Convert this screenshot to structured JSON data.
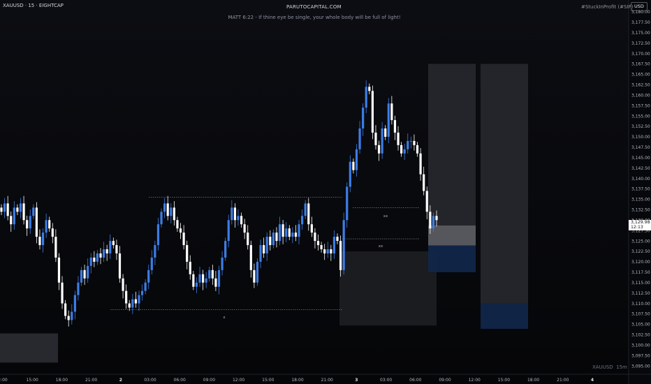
{
  "header": {
    "symbol": "XAUUSD · 15 · EIGHTCAP",
    "site": "PARUTOCAPITAL.COM",
    "tag": "#StuckInProfit (#SIP)",
    "quote": "MATT 6:22 - If thine eye be single, your whole body will be full of light!"
  },
  "currency": "USD",
  "price_tag": {
    "price": "3,129.98",
    "timer": "12:13"
  },
  "watermark": {
    "symbol": "XAUUSD",
    "interval": "15m"
  },
  "markers": {
    "a": "xx",
    "b": "xx",
    "c": "x"
  },
  "colors": {
    "background": "#07080c",
    "bull": "#3d7de6",
    "bear": "#ffffff",
    "axis_text": "#b5b8c0"
  },
  "chart_data": {
    "type": "candlestick",
    "ylim": [
      3093.0,
      3182.0
    ],
    "ytick_labels": [
      "3,180.00",
      "3,177.50",
      "3,175.00",
      "3,172.50",
      "3,170.00",
      "3,167.50",
      "3,165.00",
      "3,162.50",
      "3,160.00",
      "3,157.50",
      "3,155.00",
      "3,152.50",
      "3,150.00",
      "3,147.50",
      "3,145.00",
      "3,142.50",
      "3,140.00",
      "3,137.50",
      "3,135.00",
      "3,132.50",
      "3,130.00",
      "3,127.50",
      "3,125.00",
      "3,122.50",
      "3,120.00",
      "3,117.50",
      "3,115.00",
      "3,112.50",
      "3,110.00",
      "3,107.50",
      "3,105.00",
      "3,102.50",
      "3,100.00",
      "3,097.50",
      "3,095.00"
    ],
    "ytick_values": [
      3180,
      3177.5,
      3175,
      3172.5,
      3170,
      3167.5,
      3165,
      3162.5,
      3160,
      3157.5,
      3155,
      3152.5,
      3150,
      3147.5,
      3145,
      3142.5,
      3140,
      3137.5,
      3135,
      3132.5,
      3130,
      3127.5,
      3125,
      3122.5,
      3120,
      3117.5,
      3115,
      3112.5,
      3110,
      3107.5,
      3105,
      3102.5,
      3100,
      3097.5,
      3095
    ],
    "xtick_labels": [
      "2:00",
      "15:00",
      "18:00",
      "21:00",
      "2",
      "03:00",
      "06:00",
      "09:00",
      "12:00",
      "15:00",
      "18:00",
      "21:00",
      "3",
      "03:00",
      "06:00",
      "09:00",
      "12:00",
      "15:00",
      "18:00",
      "21:00",
      "4"
    ],
    "close_series": [
      3132,
      3134,
      3131,
      3129,
      3133,
      3132,
      3134,
      3130,
      3128,
      3131,
      3133,
      3126,
      3124,
      3127,
      3130,
      3128,
      3126,
      3121,
      3115,
      3110,
      3107,
      3106,
      3108,
      3112,
      3115,
      3118,
      3116,
      3119,
      3121,
      3120,
      3122,
      3121,
      3123,
      3122,
      3125,
      3124,
      3122,
      3116,
      3113,
      3110,
      3109,
      3111,
      3110,
      3112,
      3113,
      3115,
      3118,
      3121,
      3124,
      3129,
      3132,
      3134,
      3131,
      3133,
      3130,
      3128,
      3127,
      3124,
      3120,
      3117,
      3114,
      3115,
      3117,
      3115,
      3116,
      3118,
      3116,
      3114,
      3118,
      3121,
      3125,
      3130,
      3133,
      3130,
      3131,
      3129,
      3127,
      3124,
      3118,
      3115,
      3120,
      3124,
      3122,
      3126,
      3124,
      3127,
      3125,
      3129,
      3126,
      3128,
      3126,
      3127,
      3126,
      3129,
      3131,
      3134,
      3129,
      3127,
      3125,
      3124,
      3123,
      3122,
      3123,
      3122,
      3126,
      3125,
      3118,
      3130,
      3138,
      3144,
      3142,
      3147,
      3152,
      3157,
      3162,
      3161,
      3151,
      3148,
      3146,
      3152,
      3150,
      3158,
      3154,
      3151,
      3148,
      3146,
      3147,
      3149,
      3149,
      3148,
      3146,
      3141,
      3137,
      3132,
      3128,
      3131,
      3130
    ],
    "boxes": [
      {
        "label": "range-box-left",
        "x_start": 0,
        "x_end": 83,
        "y_low": 3095.8,
        "y_high": 3102.8,
        "fill": "#2a2b30"
      },
      {
        "label": "session-box",
        "x_start": 486,
        "x_end": 625,
        "y_low": 3104.7,
        "y_high": 3122.5,
        "fill": "#1c1d21"
      },
      {
        "label": "projection-upper-1",
        "x_start": 613,
        "x_end": 681,
        "y_low": 3128.7,
        "y_high": 3167.5,
        "fill": "#26272c"
      },
      {
        "label": "projection-mid-1",
        "x_start": 613,
        "x_end": 681,
        "y_low": 3123.9,
        "y_high": 3128.7,
        "fill": "#5a5c62"
      },
      {
        "label": "projection-lower-1",
        "x_start": 613,
        "x_end": 681,
        "y_low": 3117.5,
        "y_high": 3123.9,
        "fill": "#11264a"
      },
      {
        "label": "projection-upper-2",
        "x_start": 688,
        "x_end": 756,
        "y_low": 3110.0,
        "y_high": 3167.5,
        "fill": "#26272c"
      },
      {
        "label": "projection-lower-2",
        "x_start": 688,
        "x_end": 756,
        "y_low": 3103.9,
        "y_high": 3110.0,
        "fill": "#11264a"
      }
    ],
    "levels": [
      {
        "label": "dotted-high",
        "x_start": 213,
        "x_end": 490,
        "y": 3135.5
      },
      {
        "label": "dotted-low",
        "x_start": 158,
        "x_end": 490,
        "y": 3108.5
      },
      {
        "label": "mid-level-a",
        "x_start": 505,
        "x_end": 600,
        "y": 3133.0
      },
      {
        "label": "mid-level-b",
        "x_start": 490,
        "x_end": 600,
        "y": 3125.5
      }
    ]
  }
}
